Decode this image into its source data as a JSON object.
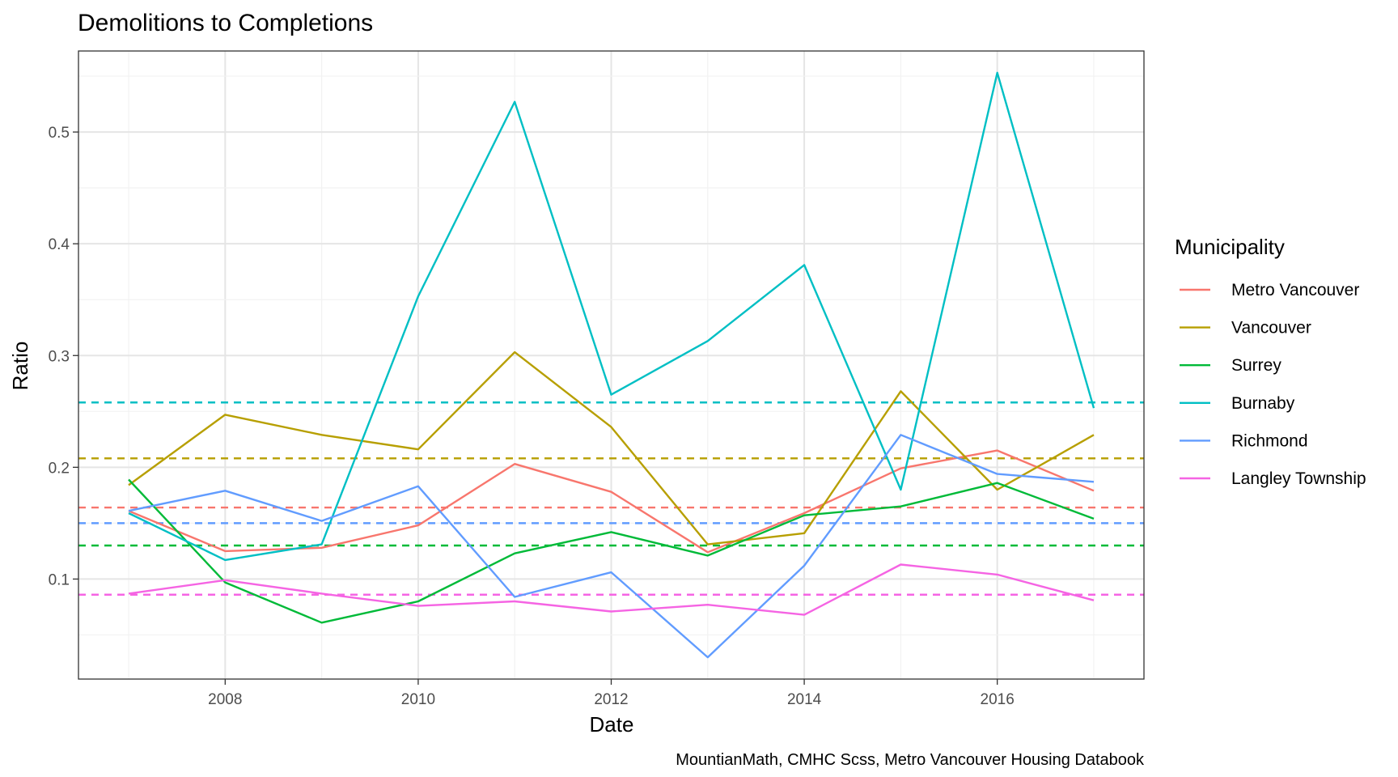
{
  "chart_data": {
    "type": "line",
    "title": "Demolitions to Completions",
    "xlabel": "Date",
    "ylabel": "Ratio",
    "caption": "MountianMath, CMHC Scss, Metro Vancouver Housing Databook",
    "x": [
      2007,
      2008,
      2009,
      2010,
      2011,
      2012,
      2013,
      2014,
      2015,
      2016,
      2017
    ],
    "xlim": [
      2006.48,
      2017.52
    ],
    "ylim": [
      0.0105,
      0.5725
    ],
    "x_ticks": [
      "2008",
      "2010",
      "2012",
      "2014",
      "2016"
    ],
    "y_ticks": [
      "0.1",
      "0.2",
      "0.3",
      "0.4",
      "0.5"
    ],
    "grid": true,
    "legend": {
      "title": "Municipality",
      "position": "right"
    },
    "series": [
      {
        "name": "Metro Vancouver",
        "color": "#F8766D",
        "values": [
          0.161,
          0.125,
          0.128,
          0.148,
          0.203,
          0.178,
          0.124,
          0.159,
          0.199,
          0.215,
          0.179
        ],
        "average": 0.164
      },
      {
        "name": "Vancouver",
        "color": "#B79F00",
        "values": [
          0.184,
          0.247,
          0.229,
          0.216,
          0.303,
          0.236,
          0.131,
          0.141,
          0.268,
          0.18,
          0.229
        ],
        "average": 0.208
      },
      {
        "name": "Surrey",
        "color": "#00BA38",
        "values": [
          0.189,
          0.097,
          0.061,
          0.08,
          0.123,
          0.142,
          0.121,
          0.157,
          0.165,
          0.186,
          0.154
        ],
        "average": 0.13
      },
      {
        "name": "Burnaby",
        "color": "#00BFC4",
        "values": [
          0.159,
          0.117,
          0.131,
          0.353,
          0.527,
          0.265,
          0.313,
          0.381,
          0.18,
          0.553,
          0.253
        ],
        "average": 0.258
      },
      {
        "name": "Richmond",
        "color": "#619CFF",
        "values": [
          0.161,
          0.179,
          0.152,
          0.183,
          0.084,
          0.106,
          0.03,
          0.112,
          0.229,
          0.194,
          0.187
        ],
        "average": 0.15
      },
      {
        "name": "Langley Township",
        "color": "#F564E3",
        "values": [
          0.087,
          0.099,
          0.087,
          0.076,
          0.08,
          0.071,
          0.077,
          0.068,
          0.113,
          0.104,
          0.081
        ],
        "average": 0.086
      }
    ]
  }
}
